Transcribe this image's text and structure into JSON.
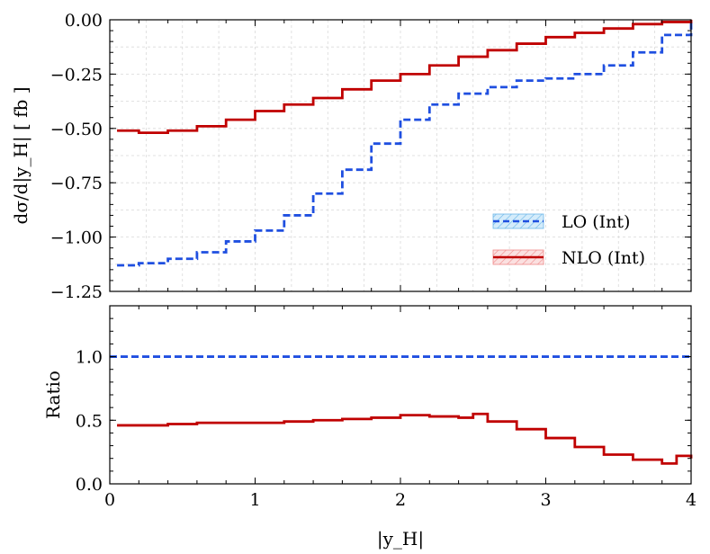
{
  "chart_data": {
    "type": "line",
    "xlabel": "|y_H|",
    "xlim": [
      0,
      4
    ],
    "x_ticks": [
      "0",
      "1",
      "2",
      "3",
      "4"
    ],
    "panels": [
      {
        "name": "main",
        "ylabel": "dσ/d|y_H| [ fb ]",
        "ylim": [
          -1.25,
          0.0
        ],
        "y_ticks": [
          "0.00",
          "−0.25",
          "−0.50",
          "−0.75",
          "−1.00",
          "−1.25"
        ],
        "grid": true,
        "legend_position": "lower-right",
        "series": [
          {
            "name": "LO (Int)",
            "style": "dashed-step",
            "color": "#1f4fe0",
            "x": [
              0.05,
              0.2,
              0.4,
              0.6,
              0.8,
              1.0,
              1.2,
              1.4,
              1.6,
              1.8,
              2.0,
              2.2,
              2.4,
              2.6,
              2.8,
              3.0,
              3.2,
              3.4,
              3.6,
              3.8,
              4.0
            ],
            "values": [
              -1.13,
              -1.12,
              -1.1,
              -1.07,
              -1.02,
              -0.97,
              -0.9,
              -0.8,
              -0.69,
              -0.57,
              -0.46,
              -0.39,
              -0.34,
              -0.31,
              -0.28,
              -0.27,
              -0.25,
              -0.21,
              -0.15,
              -0.07,
              -0.01
            ]
          },
          {
            "name": "NLO (Int)",
            "style": "solid-step",
            "color": "#c00000",
            "x": [
              0.05,
              0.2,
              0.4,
              0.6,
              0.8,
              1.0,
              1.2,
              1.4,
              1.6,
              1.8,
              2.0,
              2.2,
              2.4,
              2.6,
              2.8,
              3.0,
              3.2,
              3.4,
              3.6,
              3.8,
              4.0
            ],
            "values": [
              -0.51,
              -0.52,
              -0.51,
              -0.49,
              -0.46,
              -0.42,
              -0.39,
              -0.36,
              -0.32,
              -0.28,
              -0.25,
              -0.21,
              -0.17,
              -0.14,
              -0.11,
              -0.08,
              -0.06,
              -0.04,
              -0.02,
              -0.01,
              0.0
            ]
          }
        ]
      },
      {
        "name": "ratio",
        "ylabel": "Ratio",
        "ylim": [
          0.0,
          1.4
        ],
        "y_ticks": [
          "1.0",
          "0.5",
          "0.0"
        ],
        "grid": false,
        "series": [
          {
            "name": "LO (Int) ratio",
            "style": "dashed",
            "color": "#1f4fe0",
            "x": [
              0.0,
              4.0
            ],
            "values": [
              1.0,
              1.0
            ]
          },
          {
            "name": "NLO (Int) ratio",
            "style": "solid-step",
            "color": "#c00000",
            "x": [
              0.05,
              0.2,
              0.4,
              0.6,
              0.8,
              1.0,
              1.2,
              1.4,
              1.6,
              1.8,
              2.0,
              2.2,
              2.4,
              2.5,
              2.6,
              2.8,
              3.0,
              3.2,
              3.4,
              3.6,
              3.8,
              3.9,
              4.0
            ],
            "values": [
              0.46,
              0.46,
              0.47,
              0.48,
              0.48,
              0.48,
              0.49,
              0.5,
              0.51,
              0.52,
              0.54,
              0.53,
              0.52,
              0.55,
              0.49,
              0.43,
              0.36,
              0.29,
              0.23,
              0.19,
              0.16,
              0.22,
              0.2
            ]
          }
        ]
      }
    ]
  }
}
